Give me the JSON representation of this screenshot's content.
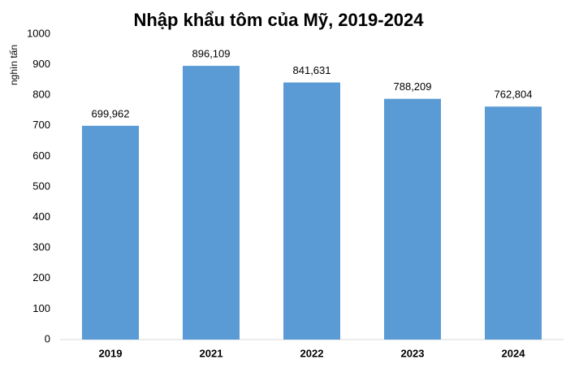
{
  "chart_data": {
    "type": "bar",
    "title": "Nhập khẩu tôm của Mỹ, 2019-2024",
    "y_label": "nghìn tấn",
    "categories": [
      "2019",
      "2021",
      "2022",
      "2023",
      "2024"
    ],
    "values": [
      699.962,
      896.109,
      841.631,
      788.209,
      762.804
    ],
    "value_labels": [
      "699,962",
      "896,109",
      "841,631",
      "788,209",
      "762,804"
    ],
    "color": "#5b9bd5",
    "ylim": [
      0,
      1000
    ],
    "yticks": [
      0,
      100,
      200,
      300,
      400,
      500,
      600,
      700,
      800,
      900,
      1000
    ],
    "grid": false
  }
}
